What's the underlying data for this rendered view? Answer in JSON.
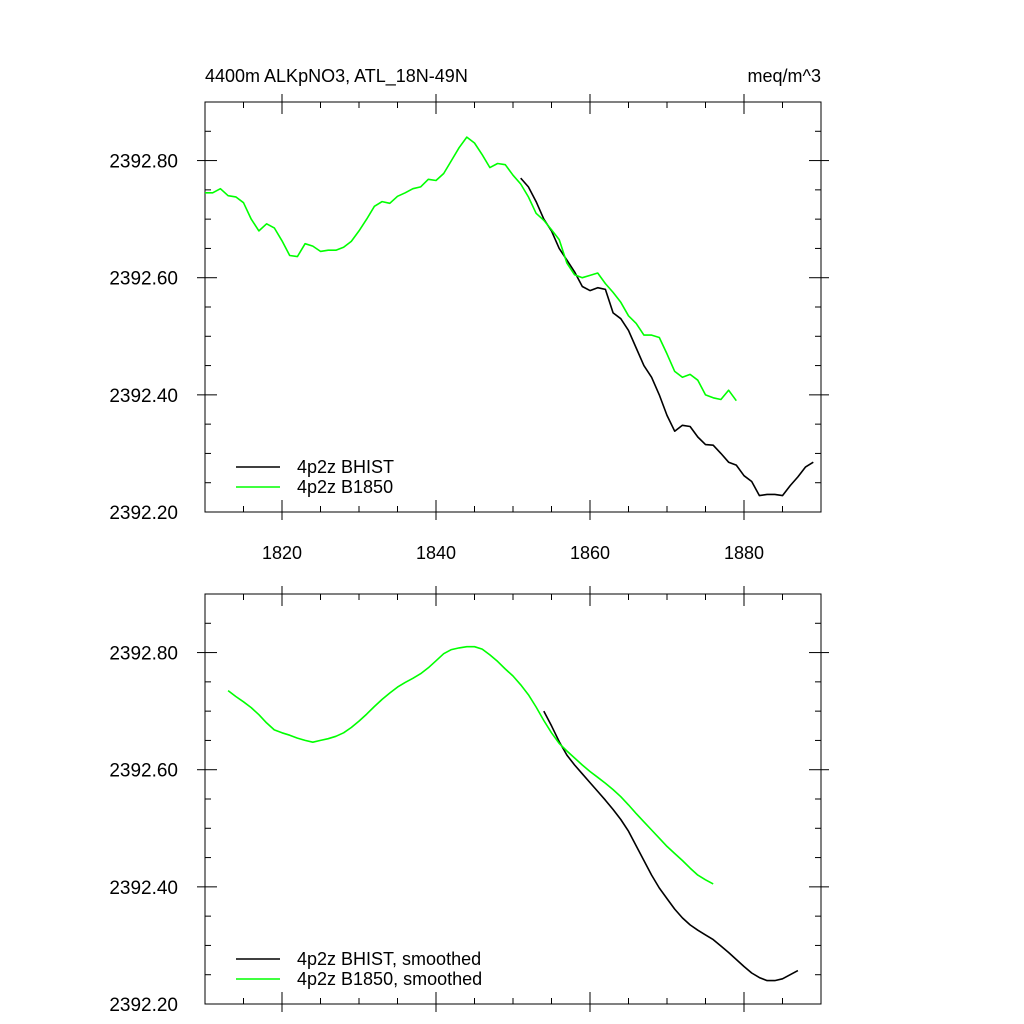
{
  "header": {
    "title": "4400m ALKpNO3, ATL_18N-49N",
    "units": "meq/m^3"
  },
  "colors": {
    "bhist": "#000000",
    "b1850": "#00ff00",
    "axis": "#000000"
  },
  "chart_data": [
    {
      "type": "line",
      "title": "4400m ALKpNO3, ATL_18N-49N",
      "units": "meq/m^3",
      "xlim": [
        1810,
        1890
      ],
      "ylim": [
        2392.2,
        2392.9
      ],
      "x_ticks": [
        1820,
        1840,
        1860,
        1880
      ],
      "x_tick_labels": [
        "1820",
        "1840",
        "1860",
        "1880"
      ],
      "y_ticks": [
        2392.2,
        2392.4,
        2392.6,
        2392.8
      ],
      "y_tick_labels": [
        "2392.20",
        "2392.40",
        "2392.60",
        "2392.80"
      ],
      "legend_position": "bottom-left",
      "series": [
        {
          "name": "4p2z BHIST",
          "color": "#000000",
          "x": [
            1851,
            1852,
            1853,
            1854,
            1855,
            1856,
            1857,
            1858,
            1859,
            1860,
            1861,
            1862,
            1863,
            1864,
            1865,
            1866,
            1867,
            1868,
            1869,
            1870,
            1871,
            1872,
            1873,
            1874,
            1875,
            1876,
            1877,
            1878,
            1879,
            1880,
            1881,
            1882,
            1883,
            1884,
            1885,
            1886,
            1887,
            1888,
            1889
          ],
          "y": [
            2392.77,
            2392.755,
            2392.73,
            2392.7,
            2392.68,
            2392.65,
            2392.63,
            2392.61,
            2392.585,
            2392.578,
            2392.583,
            2392.58,
            2392.54,
            2392.53,
            2392.51,
            2392.48,
            2392.45,
            2392.43,
            2392.4,
            2392.365,
            2392.338,
            2392.348,
            2392.346,
            2392.328,
            2392.315,
            2392.314,
            2392.3,
            2392.285,
            2392.28,
            2392.262,
            2392.252,
            2392.228,
            2392.23,
            2392.23,
            2392.228,
            2392.245,
            2392.26,
            2392.277,
            2392.285
          ]
        },
        {
          "name": "4p2z B1850",
          "color": "#00ff00",
          "x": [
            1810,
            1811,
            1812,
            1813,
            1814,
            1815,
            1816,
            1817,
            1818,
            1819,
            1820,
            1821,
            1822,
            1823,
            1824,
            1825,
            1826,
            1827,
            1828,
            1829,
            1830,
            1831,
            1832,
            1833,
            1834,
            1835,
            1836,
            1837,
            1838,
            1839,
            1840,
            1841,
            1842,
            1843,
            1844,
            1845,
            1846,
            1847,
            1848,
            1849,
            1850,
            1851,
            1852,
            1853,
            1854,
            1855,
            1856,
            1857,
            1858,
            1859,
            1860,
            1861,
            1862,
            1863,
            1864,
            1865,
            1866,
            1867,
            1868,
            1869,
            1870,
            1871,
            1872,
            1873,
            1874,
            1875,
            1876,
            1877,
            1878,
            1879
          ],
          "y": [
            2392.745,
            2392.745,
            2392.752,
            2392.74,
            2392.738,
            2392.728,
            2392.7,
            2392.68,
            2392.692,
            2392.685,
            2392.663,
            2392.638,
            2392.636,
            2392.658,
            2392.654,
            2392.645,
            2392.647,
            2392.647,
            2392.652,
            2392.662,
            2392.68,
            2392.7,
            2392.722,
            2392.73,
            2392.727,
            2392.739,
            2392.745,
            2392.752,
            2392.755,
            2392.768,
            2392.766,
            2392.778,
            2392.8,
            2392.822,
            2392.84,
            2392.83,
            2392.81,
            2392.788,
            2392.795,
            2392.793,
            2392.775,
            2392.76,
            2392.738,
            2392.71,
            2392.698,
            2392.682,
            2392.665,
            2392.625,
            2392.605,
            2392.6,
            2392.604,
            2392.608,
            2392.59,
            2392.575,
            2392.558,
            2392.535,
            2392.522,
            2392.502,
            2392.502,
            2392.498,
            2392.47,
            2392.44,
            2392.43,
            2392.435,
            2392.425,
            2392.4,
            2392.395,
            2392.392,
            2392.408,
            2392.39
          ]
        }
      ]
    },
    {
      "type": "line",
      "xlim": [
        1810,
        1890
      ],
      "ylim": [
        2392.2,
        2392.9
      ],
      "x_ticks": [
        1820,
        1840,
        1860,
        1880
      ],
      "y_ticks": [
        2392.2,
        2392.4,
        2392.6,
        2392.8
      ],
      "y_tick_labels": [
        "2392.20",
        "2392.40",
        "2392.60",
        "2392.80"
      ],
      "legend_position": "bottom-left",
      "series": [
        {
          "name": "4p2z BHIST, smoothed",
          "color": "#000000",
          "x": [
            1854,
            1855,
            1856,
            1857,
            1858,
            1859,
            1860,
            1861,
            1862,
            1863,
            1864,
            1865,
            1866,
            1867,
            1868,
            1869,
            1870,
            1871,
            1872,
            1873,
            1874,
            1875,
            1876,
            1877,
            1878,
            1879,
            1880,
            1881,
            1882,
            1883,
            1884,
            1885,
            1886,
            1887
          ],
          "y": [
            2392.7,
            2392.675,
            2392.648,
            2392.625,
            2392.608,
            2392.593,
            2392.578,
            2392.563,
            2392.548,
            2392.532,
            2392.515,
            2392.495,
            2392.47,
            2392.445,
            2392.42,
            2392.398,
            2392.38,
            2392.362,
            2392.347,
            2392.335,
            2392.326,
            2392.318,
            2392.31,
            2392.299,
            2392.288,
            2392.276,
            2392.264,
            2392.253,
            2392.245,
            2392.24,
            2392.24,
            2392.243,
            2392.25,
            2392.257
          ]
        },
        {
          "name": "4p2z B1850, smoothed",
          "color": "#00ff00",
          "x": [
            1813,
            1814,
            1815,
            1816,
            1817,
            1818,
            1819,
            1820,
            1821,
            1822,
            1823,
            1824,
            1825,
            1826,
            1827,
            1828,
            1829,
            1830,
            1831,
            1832,
            1833,
            1834,
            1835,
            1836,
            1837,
            1838,
            1839,
            1840,
            1841,
            1842,
            1843,
            1844,
            1845,
            1846,
            1847,
            1848,
            1849,
            1850,
            1851,
            1852,
            1853,
            1854,
            1855,
            1856,
            1857,
            1858,
            1859,
            1860,
            1861,
            1862,
            1863,
            1864,
            1865,
            1866,
            1867,
            1868,
            1869,
            1870,
            1871,
            1872,
            1873,
            1874,
            1875,
            1876
          ],
          "y": [
            2392.735,
            2392.725,
            2392.716,
            2392.706,
            2392.694,
            2392.68,
            2392.668,
            2392.663,
            2392.659,
            2392.654,
            2392.65,
            2392.647,
            2392.65,
            2392.653,
            2392.657,
            2392.663,
            2392.672,
            2392.683,
            2392.695,
            2392.708,
            2392.72,
            2392.731,
            2392.741,
            2392.749,
            2392.756,
            2392.764,
            2392.774,
            2392.786,
            2392.798,
            2392.805,
            2392.808,
            2392.81,
            2392.81,
            2392.806,
            2392.796,
            2392.785,
            2392.772,
            2392.76,
            2392.745,
            2392.728,
            2392.707,
            2392.684,
            2392.663,
            2392.645,
            2392.632,
            2392.62,
            2392.608,
            2392.597,
            2392.587,
            2392.577,
            2392.566,
            2392.554,
            2392.54,
            2392.525,
            2392.511,
            2392.497,
            2392.483,
            2392.469,
            2392.457,
            2392.445,
            2392.432,
            2392.42,
            2392.412,
            2392.405
          ]
        }
      ]
    }
  ]
}
